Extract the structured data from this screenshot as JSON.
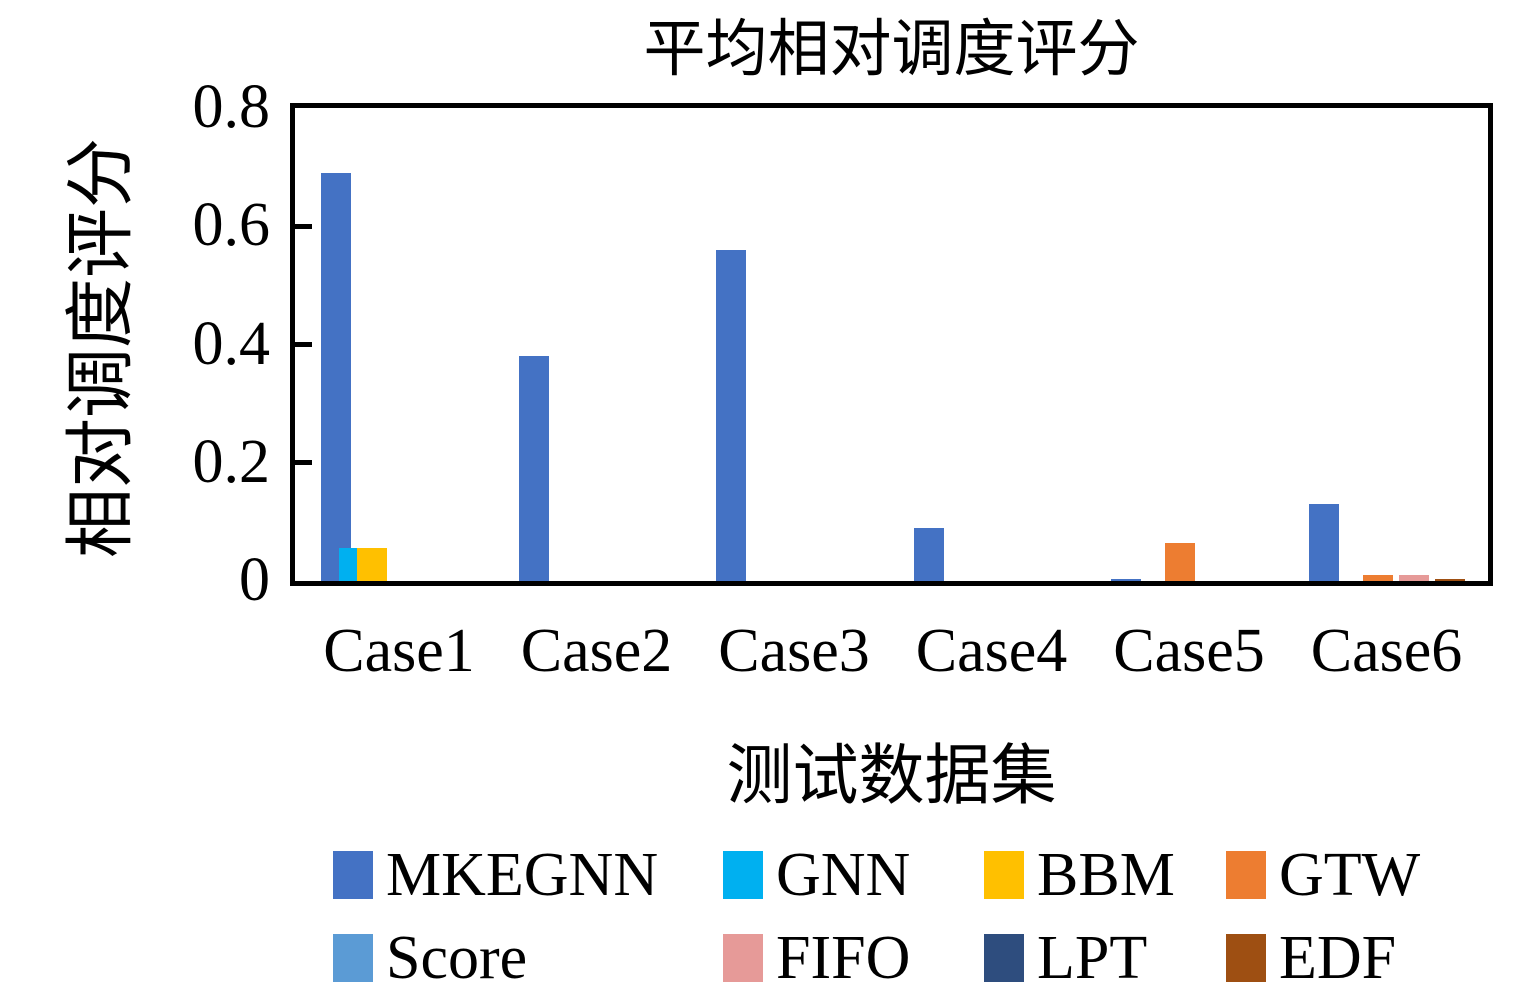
{
  "chart_data": {
    "type": "bar",
    "title": "平均相对调度评分",
    "xlabel": "测试数据集",
    "ylabel": "相对调度评分",
    "categories": [
      "Case1",
      "Case2",
      "Case3",
      "Case4",
      "Case5",
      "Case6"
    ],
    "series": [
      {
        "name": "MKEGNN",
        "color": "#4472C4",
        "values": [
          0.69,
          0.38,
          0.56,
          0.09,
          0.003,
          0.13
        ]
      },
      {
        "name": "GNN",
        "color": "#00B0F0",
        "values": [
          0.055,
          0,
          0,
          0,
          0,
          0
        ]
      },
      {
        "name": "BBM",
        "color": "#FFC000",
        "values": [
          0.055,
          0,
          0,
          0,
          0,
          0
        ]
      },
      {
        "name": "GTW",
        "color": "#ED7D31",
        "values": [
          0,
          0,
          0,
          0,
          0.065,
          0.01
        ]
      },
      {
        "name": "Score",
        "color": "#5B9BD5",
        "values": [
          0,
          0,
          0,
          0,
          0,
          0
        ]
      },
      {
        "name": "FIFO",
        "color": "#E69A98",
        "values": [
          0,
          0,
          0,
          0,
          0,
          0.01
        ]
      },
      {
        "name": "LPT",
        "color": "#2E4D7E",
        "values": [
          0,
          0,
          0,
          0,
          0,
          0
        ]
      },
      {
        "name": "EDF",
        "color": "#9E4F12",
        "values": [
          0,
          0,
          0,
          0,
          0,
          0.004
        ]
      }
    ],
    "ylim": [
      0,
      0.8
    ],
    "yticks": [
      "0",
      "0.2",
      "0.4",
      "0.6",
      "0.8"
    ],
    "grid": false,
    "legend_position": "bottom",
    "legend_rows": [
      [
        "MKEGNN",
        "GNN",
        "BBM",
        "GTW"
      ],
      [
        "Score",
        "FIFO",
        "LPT",
        "EDF"
      ]
    ]
  }
}
